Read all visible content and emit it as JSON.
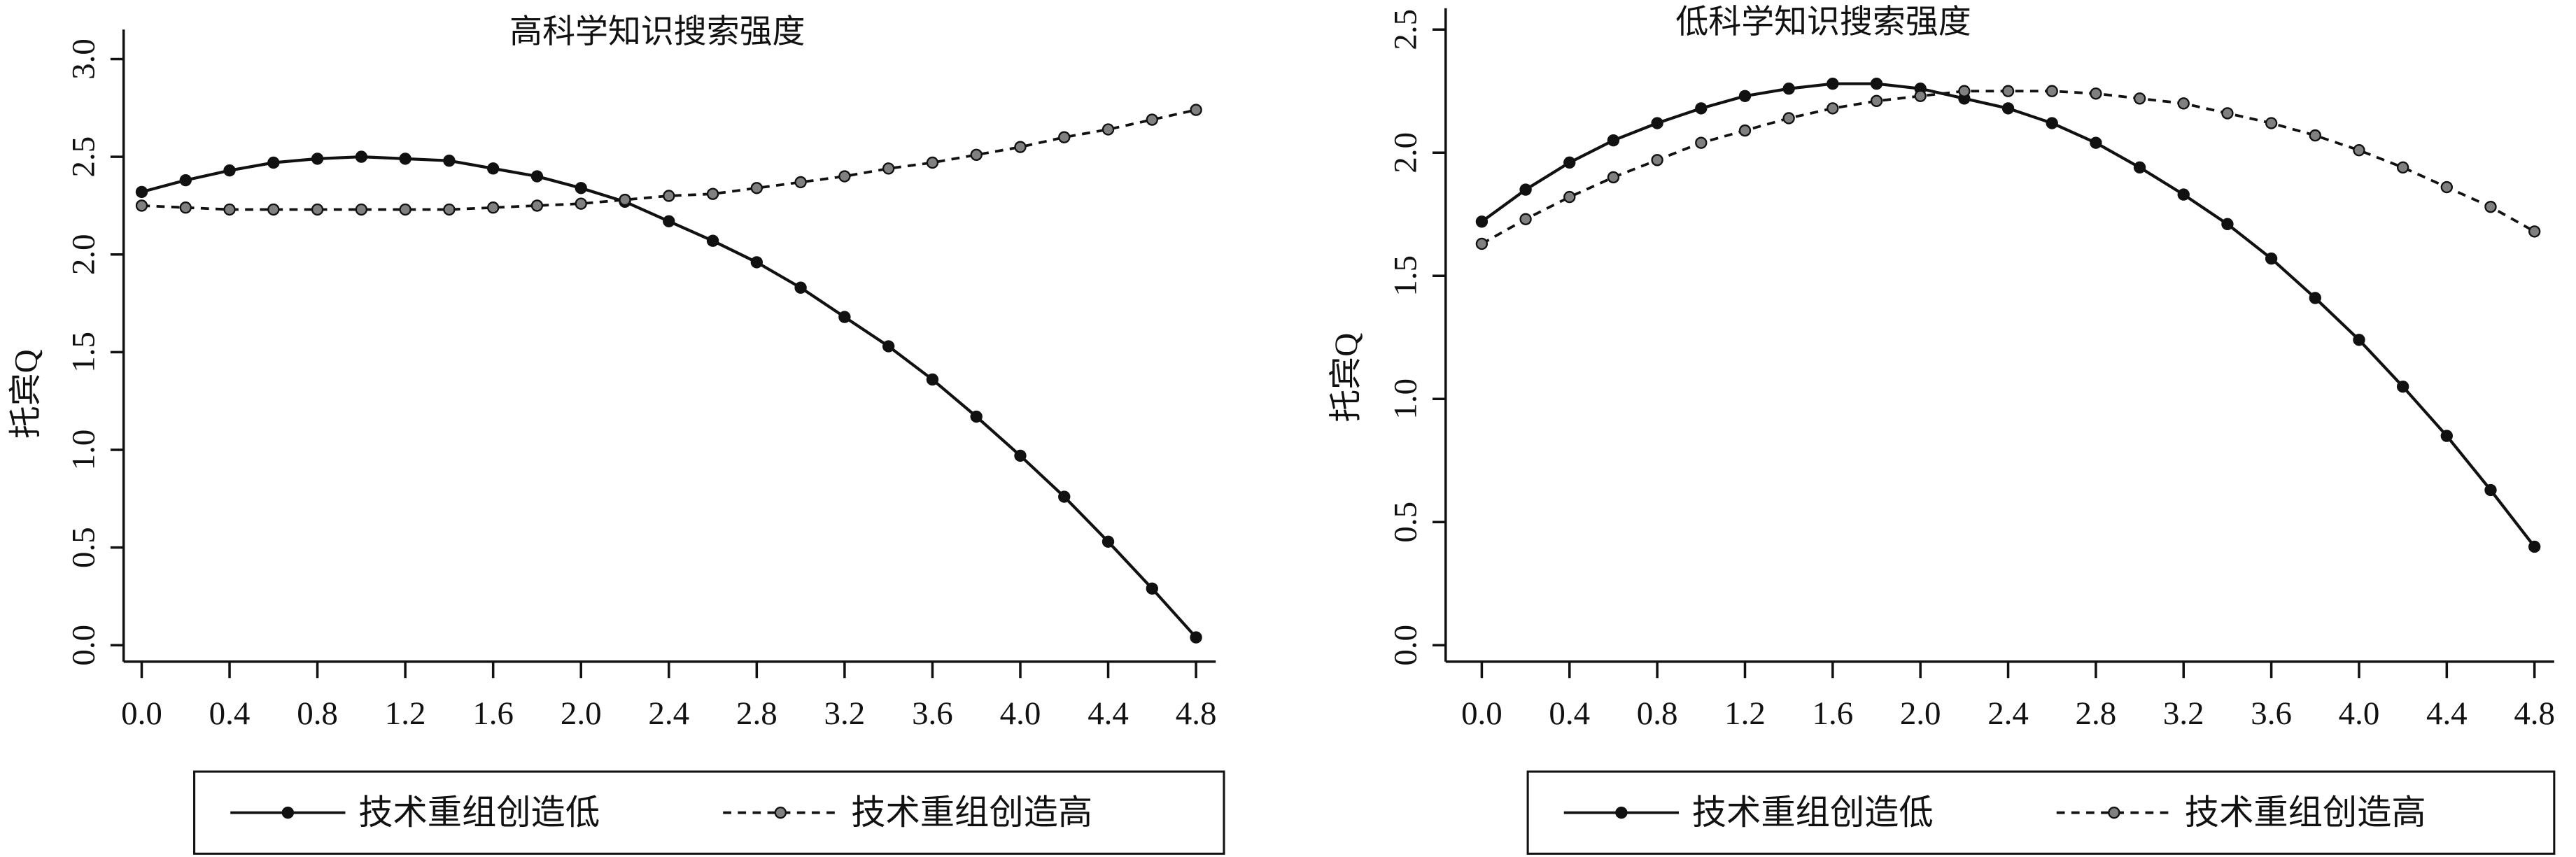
{
  "colors": {
    "solid": "#111111",
    "dashed_marker": "#808080",
    "axis": "#111111"
  },
  "chart_data": [
    {
      "type": "line",
      "title": "高科学知识搜索强度",
      "xlabel": "",
      "ylabel": "托宾Q",
      "xlim": [
        0,
        4.8
      ],
      "ylim": [
        0,
        3.0
      ],
      "xticks": [
        "0.0",
        "0.4",
        "0.8",
        "1.2",
        "1.6",
        "2.0",
        "2.4",
        "2.8",
        "3.2",
        "3.6",
        "4.0",
        "4.4",
        "4.8"
      ],
      "yticks": [
        "0.0",
        "0.5",
        "1.0",
        "1.5",
        "2.0",
        "2.5",
        "3.0"
      ],
      "grid": false,
      "legend_position": "bottom",
      "x": [
        0,
        0.2,
        0.4,
        0.6,
        0.8,
        1.0,
        1.2,
        1.4,
        1.6,
        1.8,
        2.0,
        2.2,
        2.4,
        2.6,
        2.8,
        3.0,
        3.2,
        3.4,
        3.6,
        3.8,
        4.0,
        4.2,
        4.4,
        4.6,
        4.8
      ],
      "series": [
        {
          "name": "技术重组创造低",
          "style": "solid",
          "values": [
            2.32,
            2.38,
            2.43,
            2.47,
            2.49,
            2.5,
            2.49,
            2.48,
            2.44,
            2.4,
            2.34,
            2.27,
            2.17,
            2.07,
            1.96,
            1.83,
            1.68,
            1.53,
            1.36,
            1.17,
            0.97,
            0.76,
            0.53,
            0.29,
            0.04
          ]
        },
        {
          "name": "技术重组创造高",
          "style": "dashed",
          "values": [
            2.25,
            2.24,
            2.23,
            2.23,
            2.23,
            2.23,
            2.23,
            2.23,
            2.24,
            2.25,
            2.26,
            2.28,
            2.3,
            2.31,
            2.34,
            2.37,
            2.4,
            2.44,
            2.47,
            2.51,
            2.55,
            2.6,
            2.64,
            2.69,
            2.74
          ]
        }
      ]
    },
    {
      "type": "line",
      "title": "低科学知识搜索强度",
      "xlabel": "",
      "ylabel": "托宾Q",
      "xlim": [
        0,
        4.8
      ],
      "ylim": [
        0,
        2.5
      ],
      "xticks": [
        "0.0",
        "0.4",
        "0.8",
        "1.2",
        "1.6",
        "2.0",
        "2.4",
        "2.8",
        "3.2",
        "3.6",
        "4.0",
        "4.4",
        "4.8"
      ],
      "yticks": [
        "0.0",
        "0.5",
        "1.0",
        "1.5",
        "2.0",
        "2.5"
      ],
      "grid": false,
      "legend_position": "bottom",
      "x": [
        0,
        0.2,
        0.4,
        0.6,
        0.8,
        1.0,
        1.2,
        1.4,
        1.6,
        1.8,
        2.0,
        2.2,
        2.4,
        2.6,
        2.8,
        3.0,
        3.2,
        3.4,
        3.6,
        3.8,
        4.0,
        4.2,
        4.4,
        4.6,
        4.8
      ],
      "series": [
        {
          "name": "技术重组创造低",
          "style": "solid",
          "values": [
            1.72,
            1.85,
            1.96,
            2.05,
            2.12,
            2.18,
            2.23,
            2.26,
            2.28,
            2.28,
            2.26,
            2.22,
            2.18,
            2.12,
            2.04,
            1.94,
            1.83,
            1.71,
            1.57,
            1.41,
            1.24,
            1.05,
            0.85,
            0.63,
            0.4
          ]
        },
        {
          "name": "技术重组创造高",
          "style": "dashed",
          "values": [
            1.63,
            1.73,
            1.82,
            1.9,
            1.97,
            2.04,
            2.09,
            2.14,
            2.18,
            2.21,
            2.23,
            2.25,
            2.25,
            2.25,
            2.24,
            2.22,
            2.2,
            2.16,
            2.12,
            2.07,
            2.01,
            1.94,
            1.86,
            1.78,
            1.68
          ]
        }
      ]
    }
  ]
}
